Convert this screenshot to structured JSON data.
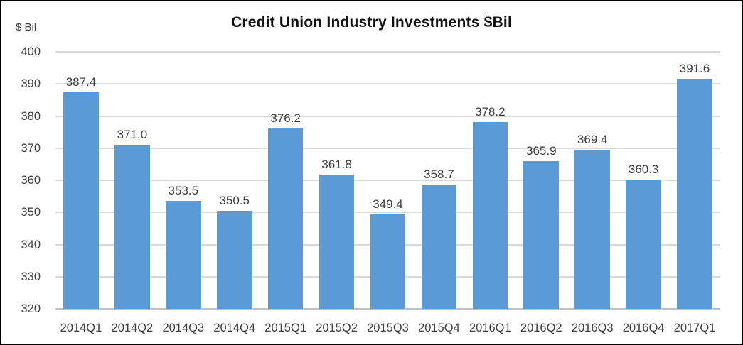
{
  "chart_data": {
    "type": "bar",
    "title": "Credit Union Industry Investments $Bil",
    "unit_label": "$ Bil",
    "categories": [
      "2014Q1",
      "2014Q2",
      "2014Q3",
      "2014Q4",
      "2015Q1",
      "2015Q2",
      "2015Q3",
      "2015Q4",
      "2016Q1",
      "2016Q2",
      "2016Q3",
      "2016Q4",
      "2017Q1"
    ],
    "values": [
      387.4,
      371.0,
      353.5,
      350.5,
      376.2,
      361.8,
      349.4,
      358.7,
      378.2,
      365.9,
      369.4,
      360.3,
      391.6
    ],
    "value_label_decimals": 1,
    "xlabel": "",
    "ylabel": "",
    "ylim": [
      320,
      400
    ],
    "yticks": [
      320,
      330,
      340,
      350,
      360,
      370,
      380,
      390,
      400
    ],
    "grid": true,
    "legend": false,
    "colors": {
      "bar": "#5B9BD5",
      "gridline": "#D9D9D9",
      "axis_line": "#BFBFBF",
      "value_label": "#404040",
      "tick_label": "#404040",
      "title": "#111111",
      "frame_border": "#000000",
      "background": "#FFFFFF"
    }
  }
}
